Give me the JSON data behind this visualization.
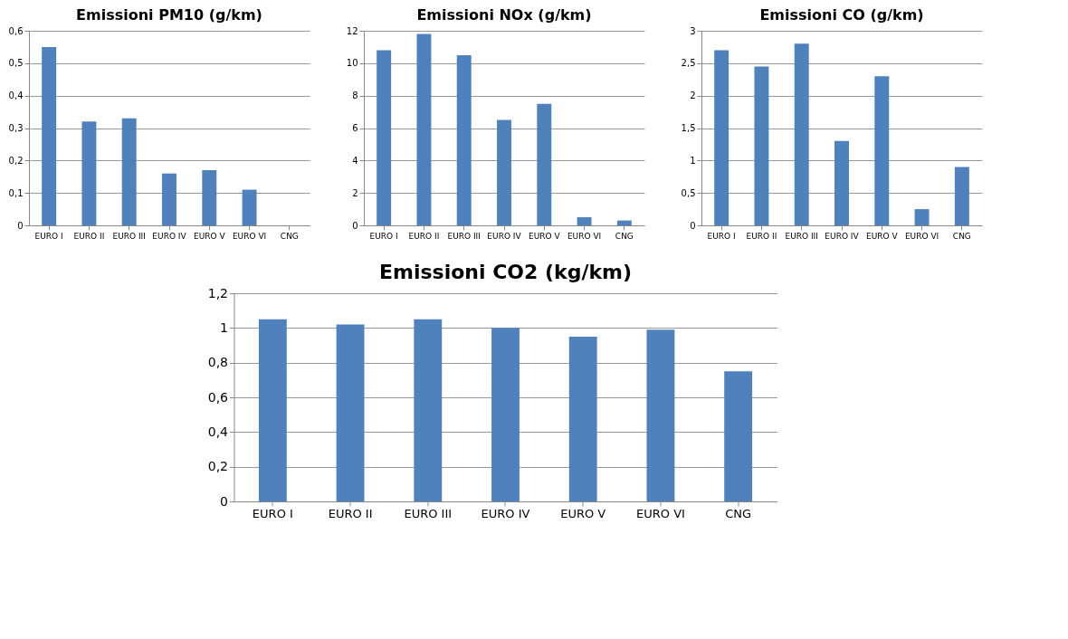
{
  "chart_data": [
    {
      "type": "bar",
      "title": "Emissioni PM10 (g/km)",
      "categories": [
        "EURO I",
        "EURO II",
        "EURO III",
        "EURO IV",
        "EURO V",
        "EURO VI",
        "CNG"
      ],
      "values": [
        0.55,
        0.32,
        0.33,
        0.16,
        0.17,
        0.11,
        0
      ],
      "color": "#4f81bd",
      "ylim": [
        0,
        0.6
      ],
      "yticks": [
        {
          "value": 0,
          "label": "0"
        },
        {
          "value": 0.1,
          "label": "0,1"
        },
        {
          "value": 0.2,
          "label": "0,2"
        },
        {
          "value": 0.3,
          "label": "0,3"
        },
        {
          "value": 0.4,
          "label": "0,4"
        },
        {
          "value": 0.5,
          "label": "0,5"
        },
        {
          "value": 0.6,
          "label": "0,6"
        }
      ],
      "grid": "y"
    },
    {
      "type": "bar",
      "title": "Emissioni NOx (g/km)",
      "categories": [
        "EURO I",
        "EURO II",
        "EURO III",
        "EURO IV",
        "EURO V",
        "EURO VI",
        "CNG"
      ],
      "values": [
        10.8,
        11.8,
        10.5,
        6.5,
        7.5,
        0.5,
        0.3
      ],
      "color": "#4f81bd",
      "ylim": [
        0,
        12
      ],
      "yticks": [
        0,
        2,
        4,
        6,
        8,
        10,
        12
      ],
      "grid": "y"
    },
    {
      "type": "bar",
      "title": "Emissioni CO (g/km)",
      "categories": [
        "EURO I",
        "EURO II",
        "EURO III",
        "EURO IV",
        "EURO V",
        "EURO VI",
        "CNG"
      ],
      "values": [
        2.7,
        2.45,
        2.8,
        1.3,
        2.3,
        0.25,
        0.9
      ],
      "color": "#4f81bd",
      "ylim": [
        0,
        3
      ],
      "yticks": [
        0,
        {
          "value": 0.5,
          "label": "0,5"
        },
        1,
        {
          "value": 1.5,
          "label": "1,5"
        },
        2,
        {
          "value": 2.5,
          "label": "2,5"
        },
        3
      ],
      "grid": "y"
    },
    {
      "type": "bar",
      "title": "Emissioni CO2 (kg/km)",
      "categories": [
        "EURO I",
        "EURO II",
        "EURO III",
        "EURO IV",
        "EURO V",
        "EURO VI",
        "CNG"
      ],
      "values": [
        1.05,
        1.02,
        1.05,
        1.0,
        0.95,
        0.99,
        0.75
      ],
      "color": "#4f81bd",
      "ylim": [
        0,
        1.2
      ],
      "yticks": [
        0,
        {
          "value": 0.2,
          "label": "0,2"
        },
        {
          "value": 0.4,
          "label": "0,4"
        },
        {
          "value": 0.6,
          "label": "0,6"
        },
        {
          "value": 0.8,
          "label": "0,8"
        },
        1,
        {
          "value": 1.2,
          "label": "1,2"
        }
      ],
      "grid": "y"
    }
  ]
}
